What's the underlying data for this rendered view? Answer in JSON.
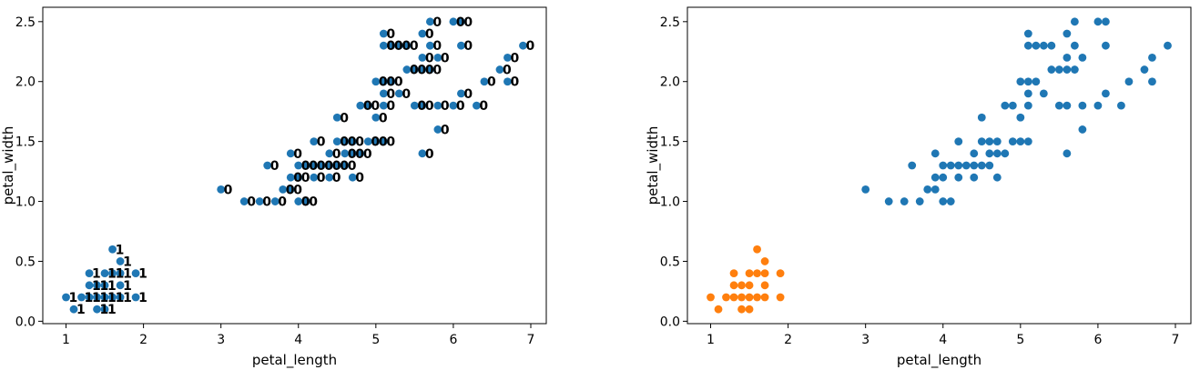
{
  "chart_data": [
    {
      "type": "scatter",
      "title": "",
      "xlabel": "petal_length",
      "ylabel": "petal_width",
      "xlim": [
        0.7,
        7.2
      ],
      "ylim": [
        -0.02,
        2.62
      ],
      "xticks": [
        1,
        2,
        3,
        4,
        5,
        6,
        7
      ],
      "yticks": [
        0.0,
        0.5,
        1.0,
        1.5,
        2.0,
        2.5
      ],
      "grid": false,
      "marker_color": "#1f77b4",
      "series": [
        {
          "points": [
            {
              "x": 1.0,
              "y": 0.2,
              "label": "1"
            },
            {
              "x": 1.1,
              "y": 0.1,
              "label": "1"
            },
            {
              "x": 1.2,
              "y": 0.2,
              "label": "1"
            },
            {
              "x": 1.3,
              "y": 0.2,
              "label": "1"
            },
            {
              "x": 1.3,
              "y": 0.3,
              "label": "1"
            },
            {
              "x": 1.3,
              "y": 0.4,
              "label": "1"
            },
            {
              "x": 1.4,
              "y": 0.1,
              "label": "1"
            },
            {
              "x": 1.4,
              "y": 0.2,
              "label": "1"
            },
            {
              "x": 1.4,
              "y": 0.3,
              "label": "1"
            },
            {
              "x": 1.5,
              "y": 0.1,
              "label": "1"
            },
            {
              "x": 1.5,
              "y": 0.2,
              "label": "1"
            },
            {
              "x": 1.5,
              "y": 0.3,
              "label": "1"
            },
            {
              "x": 1.5,
              "y": 0.4,
              "label": "1"
            },
            {
              "x": 1.6,
              "y": 0.2,
              "label": "1"
            },
            {
              "x": 1.6,
              "y": 0.4,
              "label": "1"
            },
            {
              "x": 1.6,
              "y": 0.6,
              "label": "1"
            },
            {
              "x": 1.7,
              "y": 0.2,
              "label": "1"
            },
            {
              "x": 1.7,
              "y": 0.3,
              "label": "1"
            },
            {
              "x": 1.7,
              "y": 0.4,
              "label": "1"
            },
            {
              "x": 1.7,
              "y": 0.5,
              "label": "1"
            },
            {
              "x": 1.9,
              "y": 0.2,
              "label": "1"
            },
            {
              "x": 1.9,
              "y": 0.4,
              "label": "1"
            },
            {
              "x": 3.0,
              "y": 1.1,
              "label": "0"
            },
            {
              "x": 3.3,
              "y": 1.0,
              "label": "0"
            },
            {
              "x": 3.5,
              "y": 1.0,
              "label": "0"
            },
            {
              "x": 3.6,
              "y": 1.3,
              "label": "0"
            },
            {
              "x": 3.7,
              "y": 1.0,
              "label": "0"
            },
            {
              "x": 3.8,
              "y": 1.1,
              "label": "0"
            },
            {
              "x": 3.9,
              "y": 1.1,
              "label": "0"
            },
            {
              "x": 3.9,
              "y": 1.2,
              "label": "0"
            },
            {
              "x": 3.9,
              "y": 1.4,
              "label": "0"
            },
            {
              "x": 4.0,
              "y": 1.0,
              "label": "0"
            },
            {
              "x": 4.0,
              "y": 1.2,
              "label": "0"
            },
            {
              "x": 4.0,
              "y": 1.3,
              "label": "0"
            },
            {
              "x": 4.1,
              "y": 1.0,
              "label": "0"
            },
            {
              "x": 4.1,
              "y": 1.3,
              "label": "0"
            },
            {
              "x": 4.2,
              "y": 1.2,
              "label": "0"
            },
            {
              "x": 4.2,
              "y": 1.3,
              "label": "0"
            },
            {
              "x": 4.2,
              "y": 1.5,
              "label": "0"
            },
            {
              "x": 4.3,
              "y": 1.3,
              "label": "0"
            },
            {
              "x": 4.4,
              "y": 1.2,
              "label": "0"
            },
            {
              "x": 4.4,
              "y": 1.3,
              "label": "0"
            },
            {
              "x": 4.4,
              "y": 1.4,
              "label": "0"
            },
            {
              "x": 4.5,
              "y": 1.3,
              "label": "0"
            },
            {
              "x": 4.5,
              "y": 1.5,
              "label": "0"
            },
            {
              "x": 4.5,
              "y": 1.7,
              "label": "0"
            },
            {
              "x": 4.6,
              "y": 1.3,
              "label": "0"
            },
            {
              "x": 4.6,
              "y": 1.4,
              "label": "0"
            },
            {
              "x": 4.6,
              "y": 1.5,
              "label": "0"
            },
            {
              "x": 4.7,
              "y": 1.2,
              "label": "0"
            },
            {
              "x": 4.7,
              "y": 1.4,
              "label": "0"
            },
            {
              "x": 4.7,
              "y": 1.5,
              "label": "0"
            },
            {
              "x": 4.8,
              "y": 1.4,
              "label": "0"
            },
            {
              "x": 4.8,
              "y": 1.8,
              "label": "0"
            },
            {
              "x": 4.9,
              "y": 1.5,
              "label": "0"
            },
            {
              "x": 4.9,
              "y": 1.8,
              "label": "0"
            },
            {
              "x": 5.0,
              "y": 1.5,
              "label": "0"
            },
            {
              "x": 5.0,
              "y": 1.7,
              "label": "0"
            },
            {
              "x": 5.0,
              "y": 2.0,
              "label": "0"
            },
            {
              "x": 5.1,
              "y": 1.5,
              "label": "0"
            },
            {
              "x": 5.1,
              "y": 1.8,
              "label": "0"
            },
            {
              "x": 5.1,
              "y": 1.9,
              "label": "0"
            },
            {
              "x": 5.1,
              "y": 2.0,
              "label": "0"
            },
            {
              "x": 5.1,
              "y": 2.3,
              "label": "0"
            },
            {
              "x": 5.1,
              "y": 2.4,
              "label": "0"
            },
            {
              "x": 5.2,
              "y": 2.0,
              "label": "0"
            },
            {
              "x": 5.2,
              "y": 2.3,
              "label": "0"
            },
            {
              "x": 5.3,
              "y": 1.9,
              "label": "0"
            },
            {
              "x": 5.3,
              "y": 2.3,
              "label": "0"
            },
            {
              "x": 5.4,
              "y": 2.1,
              "label": "0"
            },
            {
              "x": 5.4,
              "y": 2.3,
              "label": "0"
            },
            {
              "x": 5.5,
              "y": 1.8,
              "label": "0"
            },
            {
              "x": 5.5,
              "y": 2.1,
              "label": "0"
            },
            {
              "x": 5.6,
              "y": 1.4,
              "label": "0"
            },
            {
              "x": 5.6,
              "y": 1.8,
              "label": "0"
            },
            {
              "x": 5.6,
              "y": 2.1,
              "label": "0"
            },
            {
              "x": 5.6,
              "y": 2.2,
              "label": "0"
            },
            {
              "x": 5.6,
              "y": 2.4,
              "label": "0"
            },
            {
              "x": 5.7,
              "y": 2.1,
              "label": "0"
            },
            {
              "x": 5.7,
              "y": 2.3,
              "label": "0"
            },
            {
              "x": 5.7,
              "y": 2.5,
              "label": "0"
            },
            {
              "x": 5.8,
              "y": 1.6,
              "label": "0"
            },
            {
              "x": 5.8,
              "y": 1.8,
              "label": "0"
            },
            {
              "x": 5.8,
              "y": 2.2,
              "label": "0"
            },
            {
              "x": 6.0,
              "y": 1.8,
              "label": "0"
            },
            {
              "x": 6.0,
              "y": 2.5,
              "label": "0"
            },
            {
              "x": 6.1,
              "y": 1.9,
              "label": "0"
            },
            {
              "x": 6.1,
              "y": 2.3,
              "label": "0"
            },
            {
              "x": 6.1,
              "y": 2.5,
              "label": "0"
            },
            {
              "x": 6.3,
              "y": 1.8,
              "label": "0"
            },
            {
              "x": 6.4,
              "y": 2.0,
              "label": "0"
            },
            {
              "x": 6.6,
              "y": 2.1,
              "label": "0"
            },
            {
              "x": 6.7,
              "y": 2.0,
              "label": "0"
            },
            {
              "x": 6.7,
              "y": 2.2,
              "label": "0"
            },
            {
              "x": 6.9,
              "y": 2.3,
              "label": "0"
            }
          ]
        }
      ]
    },
    {
      "type": "scatter",
      "title": "",
      "xlabel": "petal_length",
      "ylabel": "petal_width",
      "xlim": [
        0.7,
        7.2
      ],
      "ylim": [
        -0.02,
        2.62
      ],
      "xticks": [
        1,
        2,
        3,
        4,
        5,
        6,
        7
      ],
      "yticks": [
        0.0,
        0.5,
        1.0,
        1.5,
        2.0,
        2.5
      ],
      "grid": false,
      "series": [
        {
          "color": "#ff7f0e",
          "points": [
            {
              "x": 1.0,
              "y": 0.2
            },
            {
              "x": 1.1,
              "y": 0.1
            },
            {
              "x": 1.2,
              "y": 0.2
            },
            {
              "x": 1.3,
              "y": 0.2
            },
            {
              "x": 1.3,
              "y": 0.3
            },
            {
              "x": 1.3,
              "y": 0.4
            },
            {
              "x": 1.4,
              "y": 0.1
            },
            {
              "x": 1.4,
              "y": 0.2
            },
            {
              "x": 1.4,
              "y": 0.3
            },
            {
              "x": 1.5,
              "y": 0.1
            },
            {
              "x": 1.5,
              "y": 0.2
            },
            {
              "x": 1.5,
              "y": 0.3
            },
            {
              "x": 1.5,
              "y": 0.4
            },
            {
              "x": 1.6,
              "y": 0.2
            },
            {
              "x": 1.6,
              "y": 0.4
            },
            {
              "x": 1.6,
              "y": 0.6
            },
            {
              "x": 1.7,
              "y": 0.2
            },
            {
              "x": 1.7,
              "y": 0.3
            },
            {
              "x": 1.7,
              "y": 0.4
            },
            {
              "x": 1.7,
              "y": 0.5
            },
            {
              "x": 1.9,
              "y": 0.2
            },
            {
              "x": 1.9,
              "y": 0.4
            }
          ]
        },
        {
          "color": "#1f77b4",
          "points": [
            {
              "x": 3.0,
              "y": 1.1
            },
            {
              "x": 3.3,
              "y": 1.0
            },
            {
              "x": 3.5,
              "y": 1.0
            },
            {
              "x": 3.6,
              "y": 1.3
            },
            {
              "x": 3.7,
              "y": 1.0
            },
            {
              "x": 3.8,
              "y": 1.1
            },
            {
              "x": 3.9,
              "y": 1.1
            },
            {
              "x": 3.9,
              "y": 1.2
            },
            {
              "x": 3.9,
              "y": 1.4
            },
            {
              "x": 4.0,
              "y": 1.0
            },
            {
              "x": 4.0,
              "y": 1.2
            },
            {
              "x": 4.0,
              "y": 1.3
            },
            {
              "x": 4.1,
              "y": 1.0
            },
            {
              "x": 4.1,
              "y": 1.3
            },
            {
              "x": 4.2,
              "y": 1.2
            },
            {
              "x": 4.2,
              "y": 1.3
            },
            {
              "x": 4.2,
              "y": 1.5
            },
            {
              "x": 4.3,
              "y": 1.3
            },
            {
              "x": 4.4,
              "y": 1.2
            },
            {
              "x": 4.4,
              "y": 1.3
            },
            {
              "x": 4.4,
              "y": 1.4
            },
            {
              "x": 4.5,
              "y": 1.3
            },
            {
              "x": 4.5,
              "y": 1.5
            },
            {
              "x": 4.5,
              "y": 1.7
            },
            {
              "x": 4.6,
              "y": 1.3
            },
            {
              "x": 4.6,
              "y": 1.4
            },
            {
              "x": 4.6,
              "y": 1.5
            },
            {
              "x": 4.7,
              "y": 1.2
            },
            {
              "x": 4.7,
              "y": 1.4
            },
            {
              "x": 4.7,
              "y": 1.5
            },
            {
              "x": 4.8,
              "y": 1.4
            },
            {
              "x": 4.8,
              "y": 1.8
            },
            {
              "x": 4.9,
              "y": 1.5
            },
            {
              "x": 4.9,
              "y": 1.8
            },
            {
              "x": 5.0,
              "y": 1.5
            },
            {
              "x": 5.0,
              "y": 1.7
            },
            {
              "x": 5.0,
              "y": 2.0
            },
            {
              "x": 5.1,
              "y": 1.5
            },
            {
              "x": 5.1,
              "y": 1.8
            },
            {
              "x": 5.1,
              "y": 1.9
            },
            {
              "x": 5.1,
              "y": 2.0
            },
            {
              "x": 5.1,
              "y": 2.3
            },
            {
              "x": 5.1,
              "y": 2.4
            },
            {
              "x": 5.2,
              "y": 2.0
            },
            {
              "x": 5.2,
              "y": 2.3
            },
            {
              "x": 5.3,
              "y": 1.9
            },
            {
              "x": 5.3,
              "y": 2.3
            },
            {
              "x": 5.4,
              "y": 2.1
            },
            {
              "x": 5.4,
              "y": 2.3
            },
            {
              "x": 5.5,
              "y": 1.8
            },
            {
              "x": 5.5,
              "y": 2.1
            },
            {
              "x": 5.6,
              "y": 1.4
            },
            {
              "x": 5.6,
              "y": 1.8
            },
            {
              "x": 5.6,
              "y": 2.1
            },
            {
              "x": 5.6,
              "y": 2.2
            },
            {
              "x": 5.6,
              "y": 2.4
            },
            {
              "x": 5.7,
              "y": 2.1
            },
            {
              "x": 5.7,
              "y": 2.3
            },
            {
              "x": 5.7,
              "y": 2.5
            },
            {
              "x": 5.8,
              "y": 1.6
            },
            {
              "x": 5.8,
              "y": 1.8
            },
            {
              "x": 5.8,
              "y": 2.2
            },
            {
              "x": 6.0,
              "y": 1.8
            },
            {
              "x": 6.0,
              "y": 2.5
            },
            {
              "x": 6.1,
              "y": 1.9
            },
            {
              "x": 6.1,
              "y": 2.3
            },
            {
              "x": 6.1,
              "y": 2.5
            },
            {
              "x": 6.3,
              "y": 1.8
            },
            {
              "x": 6.4,
              "y": 2.0
            },
            {
              "x": 6.6,
              "y": 2.1
            },
            {
              "x": 6.7,
              "y": 2.0
            },
            {
              "x": 6.7,
              "y": 2.2
            },
            {
              "x": 6.9,
              "y": 2.3
            }
          ]
        }
      ]
    }
  ]
}
